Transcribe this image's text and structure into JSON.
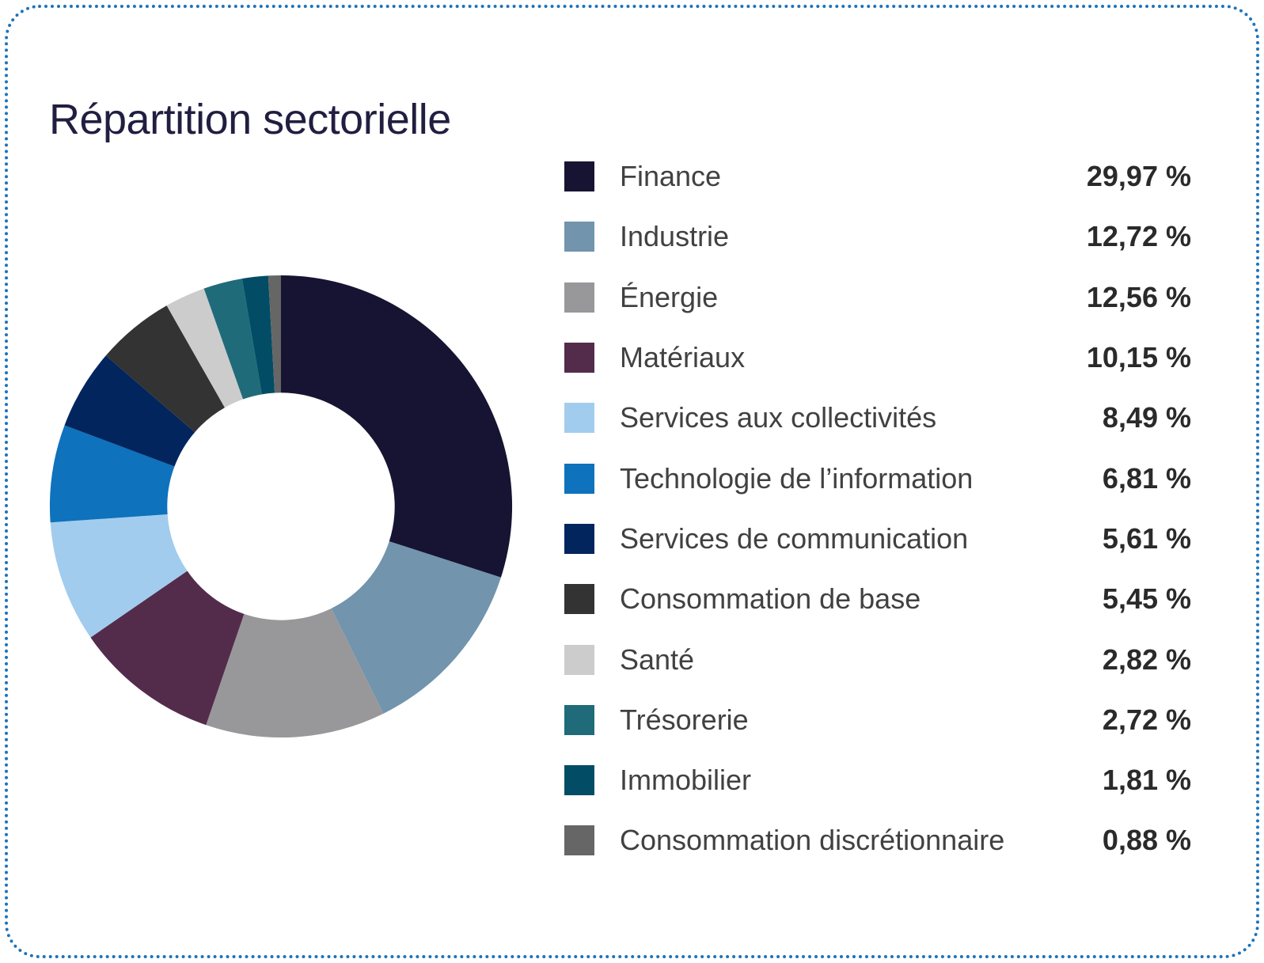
{
  "page": {
    "title": "Répartition sectorielle",
    "border_color": "#1d73b9",
    "title_color": "#211e41"
  },
  "chart_data": {
    "type": "pie",
    "variant": "donut",
    "title": "Répartition sectorielle",
    "legend_position": "right",
    "start_angle_deg": 0,
    "direction": "clockwise",
    "inner_radius_ratio": 0.492,
    "categories": [
      "Finance",
      "Industrie",
      "Énergie",
      "Matériaux",
      "Services aux collectivités",
      "Technologie de l’information",
      "Services de communication",
      "Consommation de base",
      "Santé",
      "Trésorerie",
      "Immobilier",
      "Consommation discrétionnaire"
    ],
    "values": [
      29.97,
      12.72,
      12.56,
      10.15,
      8.49,
      6.81,
      5.61,
      5.45,
      2.82,
      2.72,
      1.81,
      0.88
    ],
    "colors": [
      "#161432",
      "#7294ad",
      "#98989a",
      "#542c4b",
      "#a2ccee",
      "#0e72bc",
      "#02255e",
      "#333333",
      "#cccccc",
      "#206b79",
      "#024d65",
      "#666666"
    ]
  },
  "legend": {
    "items": [
      {
        "label": "Finance",
        "value": "29,97 %",
        "color": "#161432"
      },
      {
        "label": "Industrie",
        "value": "12,72 %",
        "color": "#7294ad"
      },
      {
        "label": "Énergie",
        "value": "12,56 %",
        "color": "#98989a"
      },
      {
        "label": "Matériaux",
        "value": "10,15 %",
        "color": "#542c4b"
      },
      {
        "label": "Services aux collectivités",
        "value": "8,49 %",
        "color": "#a2ccee"
      },
      {
        "label": "Technologie de l’information",
        "value": "6,81 %",
        "color": "#0e72bc"
      },
      {
        "label": "Services de communication",
        "value": "5,61 %",
        "color": "#02255e"
      },
      {
        "label": "Consommation de base",
        "value": "5,45 %",
        "color": "#333333"
      },
      {
        "label": "Santé",
        "value": "2,82 %",
        "color": "#cccccc"
      },
      {
        "label": "Trésorerie",
        "value": "2,72 %",
        "color": "#206b79"
      },
      {
        "label": "Immobilier",
        "value": "1,81 %",
        "color": "#024d65"
      },
      {
        "label": "Consommation discrétionnaire",
        "value": "0,88 %",
        "color": "#666666"
      }
    ]
  }
}
